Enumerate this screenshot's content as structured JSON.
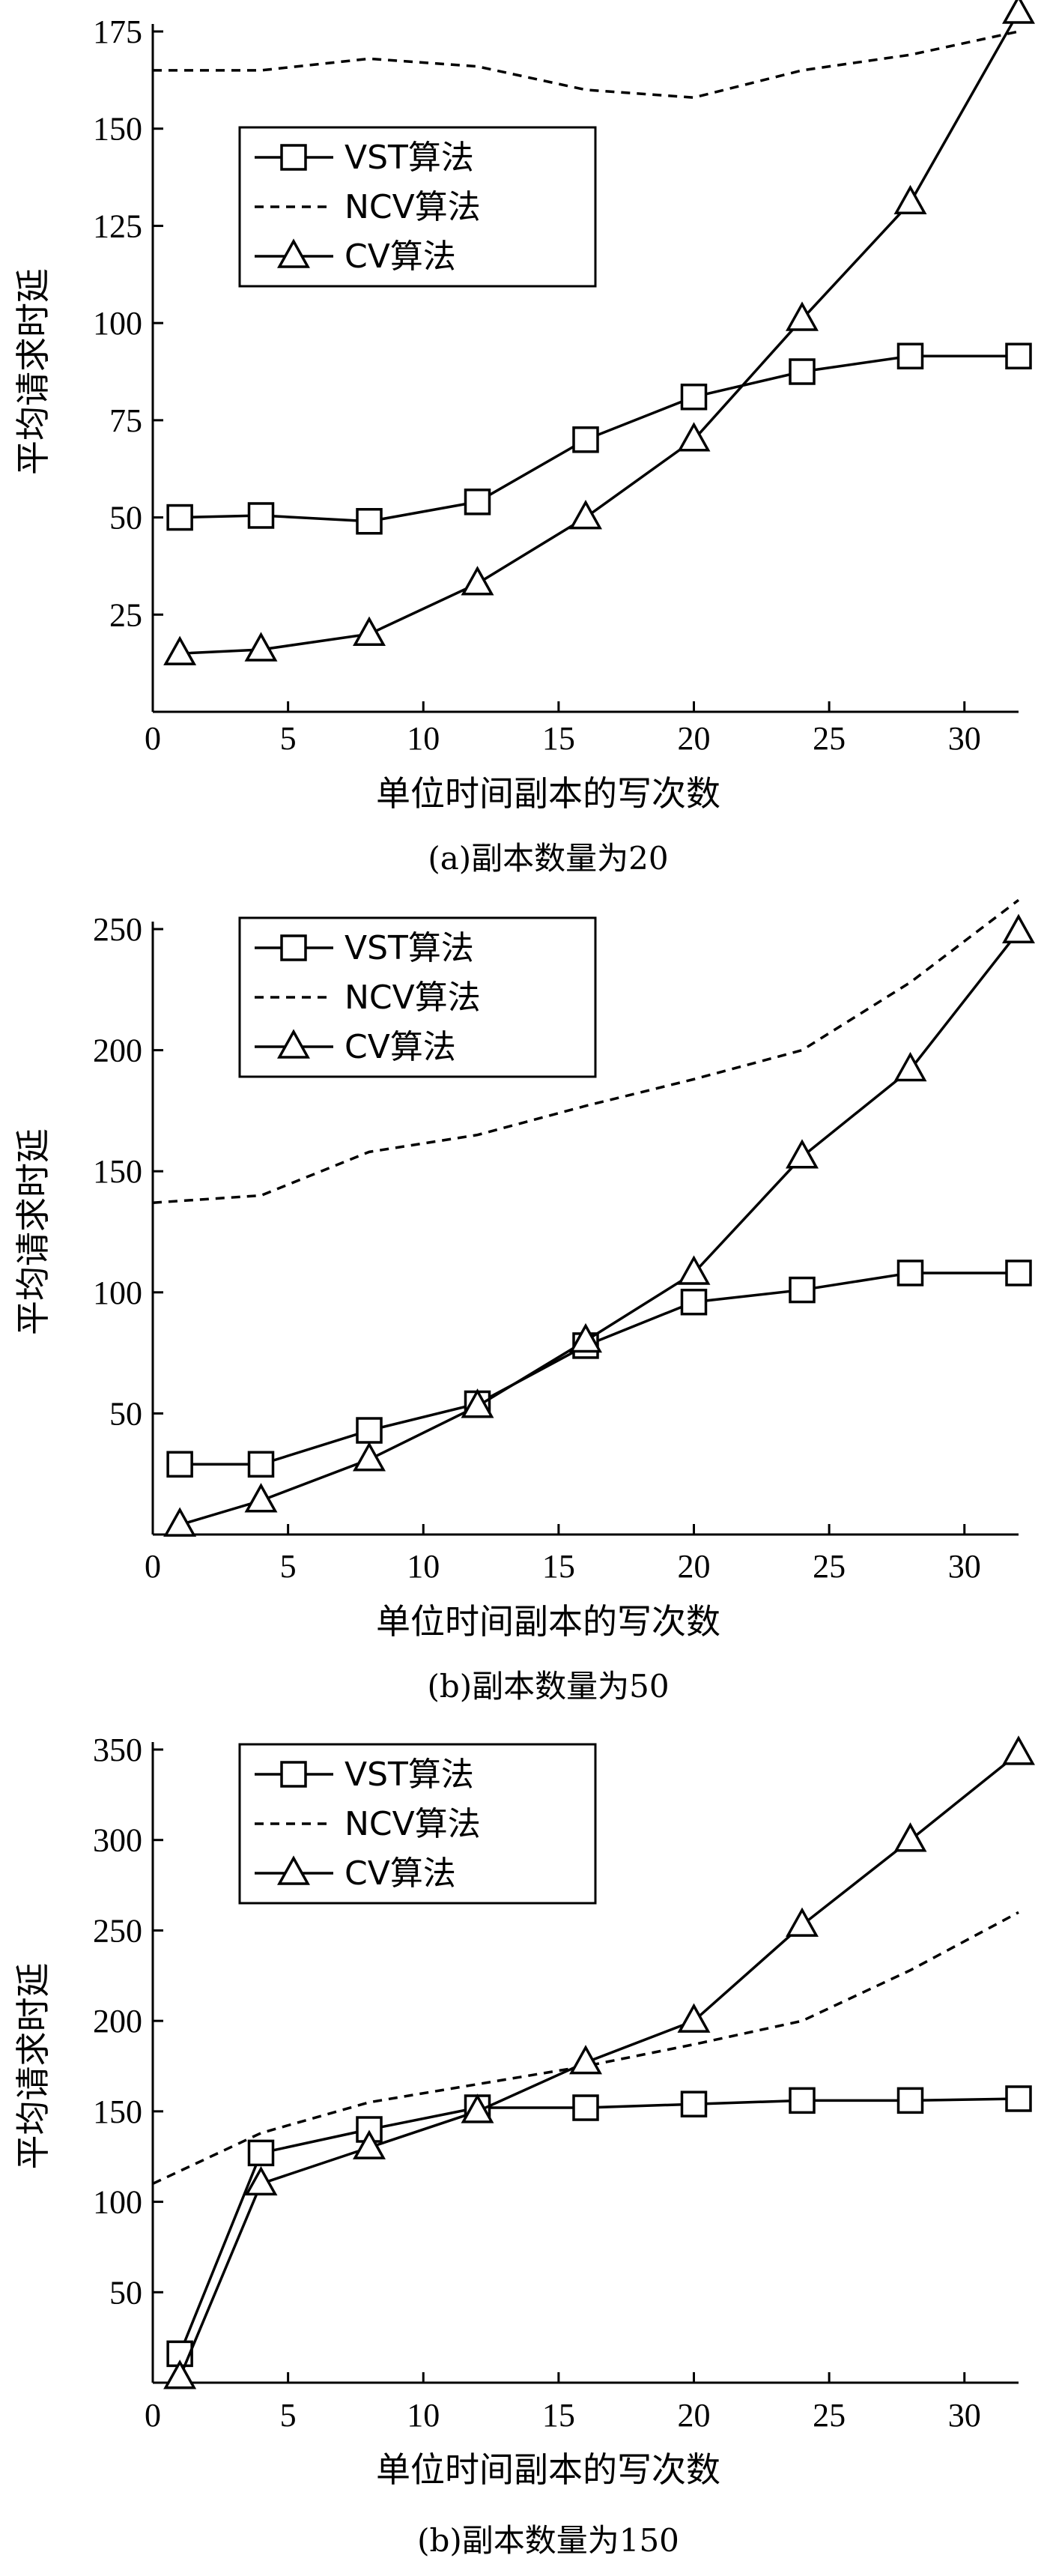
{
  "chart_data": [
    {
      "type": "line",
      "caption": "(a)副本数量为20",
      "xlabel": "单位时间副本的写次数",
      "ylabel": "平均请求时延",
      "xlim": [
        0,
        32
      ],
      "ylim": [
        0,
        175
      ],
      "xticks": [
        0,
        5,
        10,
        15,
        20,
        25,
        30
      ],
      "yticks": [
        25,
        50,
        75,
        100,
        125,
        150,
        175
      ],
      "legend_position": "upper-left",
      "series": [
        {
          "name": "VST算法",
          "style": "solid",
          "marker": "square",
          "x": [
            1,
            4,
            8,
            12,
            16,
            20,
            24,
            28,
            32
          ],
          "y": [
            50,
            50.5,
            49,
            54,
            70,
            81,
            87.5,
            91.5,
            91.5
          ]
        },
        {
          "name": "NCV算法",
          "style": "dashed",
          "marker": "none",
          "x": [
            0,
            4,
            8,
            12,
            16,
            20,
            24,
            28,
            32
          ],
          "y": [
            165,
            165,
            168,
            166,
            160,
            158,
            165,
            169,
            175
          ]
        },
        {
          "name": "CV算法",
          "style": "solid",
          "marker": "triangle",
          "x": [
            1,
            4,
            8,
            12,
            16,
            20,
            24,
            28,
            32
          ],
          "y": [
            15,
            16,
            20,
            33,
            50,
            70,
            101,
            131,
            180
          ]
        }
      ]
    },
    {
      "type": "line",
      "caption": "(b)副本数量为50",
      "xlabel": "单位时间副本的写次数",
      "ylabel": "平均请求时延",
      "xlim": [
        0,
        32
      ],
      "ylim": [
        0,
        250
      ],
      "xticks": [
        0,
        5,
        10,
        15,
        20,
        25,
        30
      ],
      "yticks": [
        50,
        100,
        150,
        200,
        250
      ],
      "legend_position": "upper-left",
      "series": [
        {
          "name": "VST算法",
          "style": "solid",
          "marker": "square",
          "x": [
            1,
            4,
            8,
            12,
            16,
            20,
            24,
            28,
            32
          ],
          "y": [
            29,
            29,
            43,
            54,
            78,
            96,
            101,
            108,
            108
          ]
        },
        {
          "name": "NCV算法",
          "style": "dashed",
          "marker": "none",
          "x": [
            0,
            4,
            8,
            12,
            16,
            20,
            24,
            28,
            32
          ],
          "y": [
            137,
            140,
            158,
            165,
            177,
            188,
            200,
            228,
            262
          ]
        },
        {
          "name": "CV算法",
          "style": "solid",
          "marker": "triangle",
          "x": [
            1,
            4,
            8,
            12,
            16,
            20,
            24,
            28,
            32
          ],
          "y": [
            4,
            14,
            31,
            53,
            80,
            108,
            156,
            192,
            249
          ]
        }
      ]
    },
    {
      "type": "line",
      "caption": "(b)副本数量为150",
      "xlabel": "单位时间副本的写次数",
      "ylabel": "平均请求时延",
      "xlim": [
        0,
        32
      ],
      "ylim": [
        0,
        350
      ],
      "xticks": [
        0,
        5,
        10,
        15,
        20,
        25,
        30
      ],
      "yticks": [
        50,
        100,
        150,
        200,
        250,
        300,
        350
      ],
      "legend_position": "upper-left",
      "series": [
        {
          "name": "VST算法",
          "style": "solid",
          "marker": "square",
          "x": [
            1,
            4,
            8,
            12,
            16,
            20,
            24,
            28,
            32
          ],
          "y": [
            16,
            127,
            140,
            152,
            152,
            154,
            156,
            156,
            157
          ]
        },
        {
          "name": "NCV算法",
          "style": "dashed",
          "marker": "none",
          "x": [
            0,
            4,
            8,
            12,
            16,
            20,
            24,
            28,
            32
          ],
          "y": [
            110,
            138,
            155,
            165,
            175,
            187,
            200,
            228,
            260
          ]
        },
        {
          "name": "CV算法",
          "style": "solid",
          "marker": "triangle",
          "x": [
            1,
            4,
            8,
            12,
            16,
            20,
            24,
            28,
            32
          ],
          "y": [
            3,
            110,
            130,
            150,
            177,
            200,
            253,
            300,
            348
          ]
        }
      ]
    }
  ]
}
